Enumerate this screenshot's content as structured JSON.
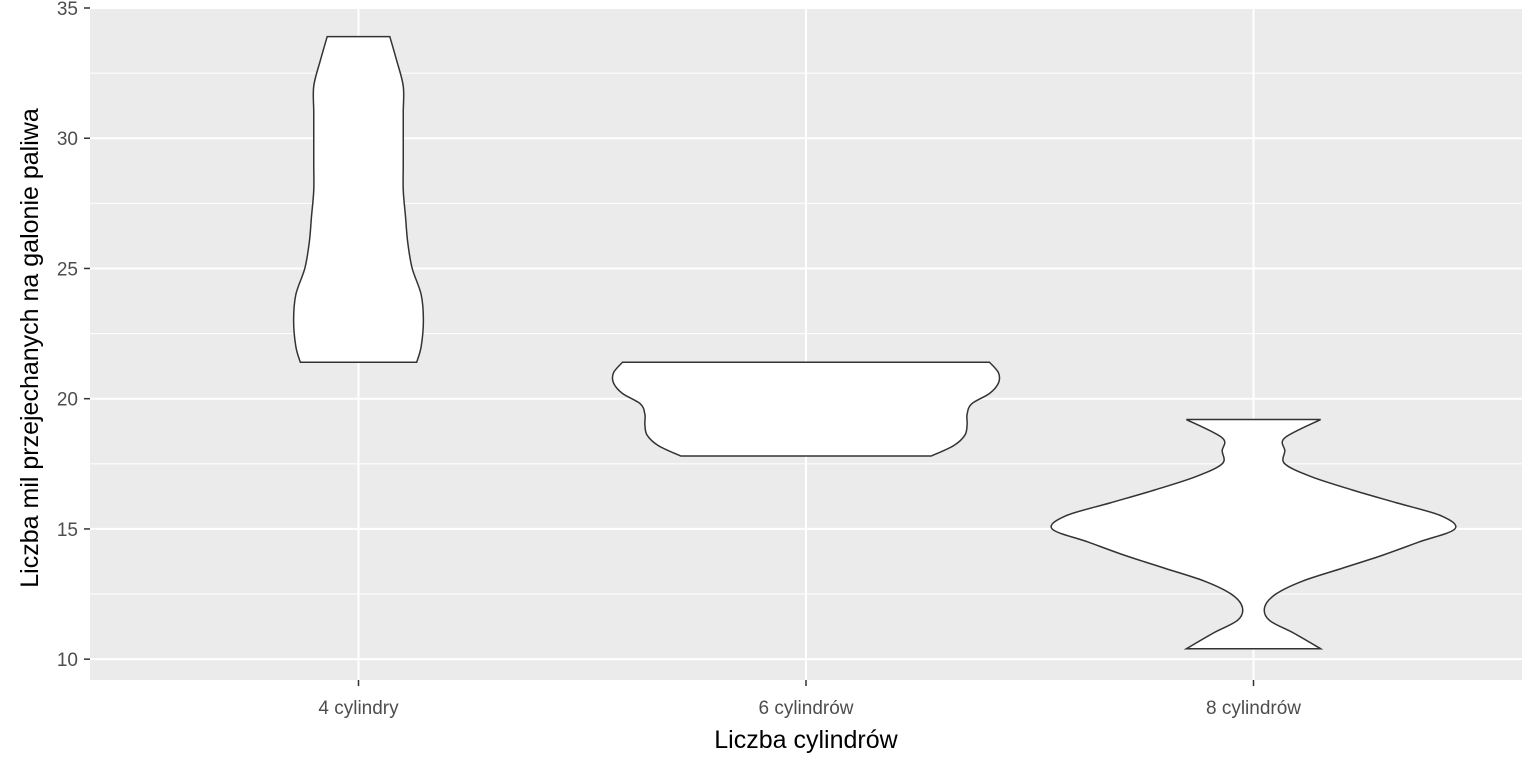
{
  "chart_data": {
    "type": "violin",
    "title": "",
    "xlabel": "Liczba cylindrów",
    "ylabel": "Liczba mil przejechanych na galonie paliwa",
    "categories": [
      "4 cylindry",
      "6 cylindrów",
      "8 cylindrów"
    ],
    "ylim": [
      9.2,
      35.0
    ],
    "yticks": [
      10,
      15,
      20,
      25,
      30,
      35
    ],
    "ytick_labels": [
      "10",
      "15",
      "20",
      "25",
      "30",
      "35"
    ],
    "grid": true,
    "legend": "none",
    "colors": {
      "panel": "#EBEBEB",
      "grid": "#FFFFFF",
      "violin_fill": "#FFFFFF",
      "violin_outline": "#333333",
      "tick_label": "#4D4D4D"
    },
    "series": [
      {
        "category": "4 cylindry",
        "min": 21.4,
        "max": 33.9,
        "density": [
          [
            21.4,
            0.13
          ],
          [
            22.0,
            0.14
          ],
          [
            23.0,
            0.145
          ],
          [
            24.0,
            0.14
          ],
          [
            25.0,
            0.12
          ],
          [
            26.0,
            0.11
          ],
          [
            27.0,
            0.105
          ],
          [
            28.0,
            0.1
          ],
          [
            29.0,
            0.1
          ],
          [
            30.0,
            0.1
          ],
          [
            31.0,
            0.1
          ],
          [
            32.0,
            0.1
          ],
          [
            33.0,
            0.085
          ],
          [
            33.9,
            0.07
          ]
        ]
      },
      {
        "category": "6 cylindrów",
        "min": 17.8,
        "max": 21.4,
        "density": [
          [
            17.8,
            0.28
          ],
          [
            18.2,
            0.33
          ],
          [
            18.6,
            0.355
          ],
          [
            19.0,
            0.36
          ],
          [
            19.4,
            0.36
          ],
          [
            19.8,
            0.37
          ],
          [
            20.2,
            0.41
          ],
          [
            20.6,
            0.43
          ],
          [
            21.0,
            0.43
          ],
          [
            21.4,
            0.41
          ]
        ]
      },
      {
        "category": "8 cylindrów",
        "min": 10.4,
        "max": 19.2,
        "density": [
          [
            10.4,
            0.15
          ],
          [
            11.0,
            0.09
          ],
          [
            11.5,
            0.035
          ],
          [
            12.0,
            0.025
          ],
          [
            12.5,
            0.05
          ],
          [
            13.0,
            0.11
          ],
          [
            13.5,
            0.2
          ],
          [
            14.0,
            0.29
          ],
          [
            14.5,
            0.37
          ],
          [
            15.0,
            0.45
          ],
          [
            15.5,
            0.42
          ],
          [
            16.0,
            0.32
          ],
          [
            16.5,
            0.22
          ],
          [
            17.0,
            0.13
          ],
          [
            17.5,
            0.07
          ],
          [
            18.0,
            0.07
          ],
          [
            18.5,
            0.07
          ],
          [
            19.2,
            0.15
          ]
        ]
      }
    ]
  }
}
